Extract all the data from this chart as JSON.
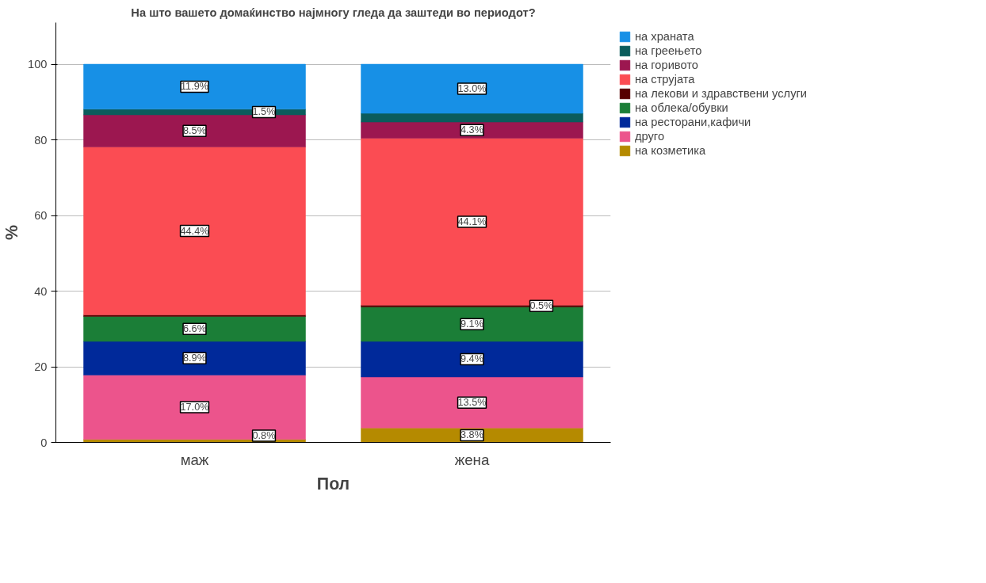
{
  "chart_data": {
    "type": "bar",
    "stacked": true,
    "title": "На што вашето домаќинство најмногу гледа да заштеди во периодот?",
    "xlabel": "Пол",
    "ylabel": "%",
    "categories": [
      "маж",
      "жена"
    ],
    "ylim": [
      0,
      111
    ],
    "yticks": [
      0,
      20,
      40,
      60,
      80,
      100
    ],
    "grid": "y",
    "legend": "right",
    "series": [
      {
        "name": "на козметика",
        "color": "#b58a00",
        "values": [
          0.8,
          3.8
        ],
        "value_labels": [
          "0.8%",
          "3.8%"
        ]
      },
      {
        "name": "друго",
        "color": "#ec548c",
        "values": [
          17.0,
          13.5
        ],
        "value_labels": [
          "17.0%",
          "13.5%"
        ]
      },
      {
        "name": "на ресторани,кафичи",
        "color": "#00299a",
        "values": [
          8.9,
          9.4
        ],
        "value_labels": [
          "8.9%",
          "9.4%"
        ]
      },
      {
        "name": "на облека/обувки",
        "color": "#1b7e37",
        "values": [
          6.6,
          9.1
        ],
        "value_labels": [
          "6.6%",
          "9.1%"
        ]
      },
      {
        "name": "на лекови и здравствени услуги",
        "color": "#560000",
        "values": [
          0.4,
          0.5
        ],
        "value_labels": [
          null,
          "0.5%"
        ]
      },
      {
        "name": "на струјата",
        "color": "#fb4c53",
        "values": [
          44.4,
          44.1
        ],
        "value_labels": [
          "44.4%",
          "44.1%"
        ]
      },
      {
        "name": "на горивото",
        "color": "#9c1750",
        "values": [
          8.5,
          4.3
        ],
        "value_labels": [
          "8.5%",
          "4.3%"
        ]
      },
      {
        "name": "на греењето",
        "color": "#0b5c5c",
        "values": [
          1.5,
          2.3
        ],
        "value_labels": [
          "1.5%",
          null
        ]
      },
      {
        "name": "на храната",
        "color": "#1790e6",
        "values": [
          11.9,
          13.0
        ],
        "value_labels": [
          "11.9%",
          "13.0%"
        ]
      }
    ]
  }
}
